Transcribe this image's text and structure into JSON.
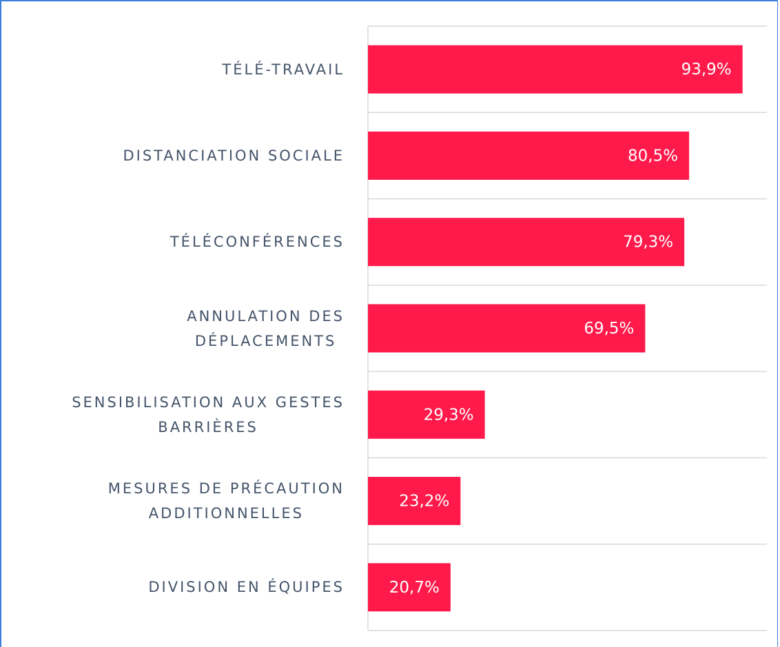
{
  "chart_data": {
    "type": "bar",
    "orientation": "horizontal",
    "categories": [
      "TÉLÉ-TRAVAIL",
      "DISTANCIATION SOCIALE",
      "TÉLÉCONFÉRENCES",
      "ANNULATION DES\nDÉPLACEMENTS",
      "SENSIBILISATION AUX GESTES\nBARRIÈRES",
      "MESURES DE PRÉCAUTION\nADDITIONNELLES",
      "DIVISION EN ÉQUIPES"
    ],
    "values": [
      93.9,
      80.5,
      79.3,
      69.5,
      29.3,
      23.2,
      20.7
    ],
    "value_labels": [
      "93,9%",
      "80,5%",
      "79,3%",
      "69,5%",
      "29,3%",
      "23,2%",
      "20,7%"
    ],
    "color": "#ff1a4b",
    "xlim": [
      0,
      100
    ]
  }
}
